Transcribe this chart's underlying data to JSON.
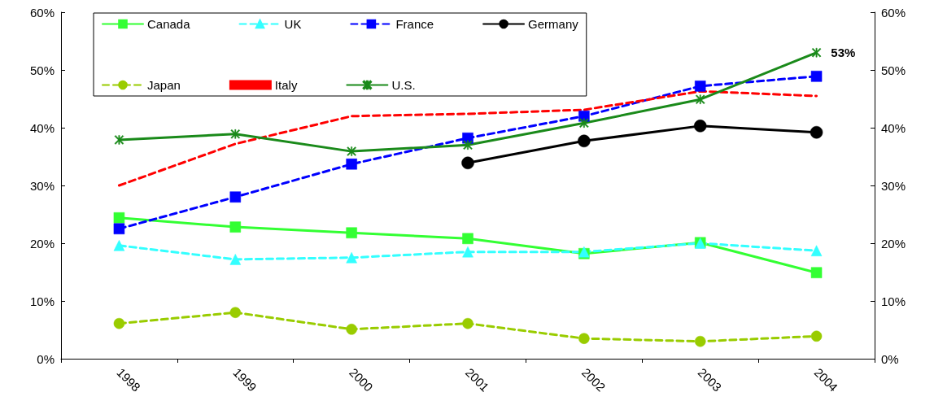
{
  "chart_data": {
    "type": "line",
    "categories": [
      "1998",
      "1999",
      "2000",
      "2001",
      "2002",
      "2003",
      "2004"
    ],
    "series": [
      {
        "name": "Canada",
        "color": "#33ff33",
        "marker": "square",
        "line_style": "solid",
        "values": [
          24.4,
          22.8,
          21.8,
          20.8,
          18.2,
          20.1,
          14.9
        ]
      },
      {
        "name": "UK",
        "color": "#33ffff",
        "marker": "triangle",
        "line_style": "dashed",
        "values": [
          19.6,
          17.2,
          17.5,
          18.5,
          18.5,
          20,
          18.7
        ]
      },
      {
        "name": "France",
        "color": "#0000ff",
        "marker": "square",
        "line_style": "dashed",
        "values": [
          22.5,
          28,
          33.7,
          38.2,
          42,
          47.2,
          48.9
        ]
      },
      {
        "name": "Germany",
        "color": "#000000",
        "marker": "circle",
        "line_style": "solid",
        "values": [
          null,
          null,
          null,
          33.9,
          37.7,
          40.3,
          39.2
        ]
      },
      {
        "name": "Japan",
        "color": "#99cc00",
        "marker": "circle",
        "line_style": "dashed",
        "values": [
          6.1,
          8,
          5.1,
          6.1,
          3.5,
          3,
          3.9
        ]
      },
      {
        "name": "Italy",
        "color": "#ff0000",
        "marker": "none",
        "line_style": "dashed",
        "values": [
          30,
          37.2,
          42,
          42.4,
          43.1,
          46.3,
          45.5
        ]
      },
      {
        "name": "U.S.",
        "color": "#1a8a1a",
        "marker": "cross",
        "line_style": "solid",
        "values": [
          37.9,
          38.9,
          35.9,
          37,
          40.8,
          44.9,
          53
        ],
        "value_labels": [
          null,
          null,
          null,
          null,
          null,
          null,
          "53%"
        ]
      }
    ],
    "ylim": [
      0,
      60
    ],
    "yticks": [
      {
        "value": 0,
        "label": "0%"
      },
      {
        "value": 10,
        "label": "10%"
      },
      {
        "value": 20,
        "label": "20%"
      },
      {
        "value": 30,
        "label": "30%"
      },
      {
        "value": 40,
        "label": "40%"
      },
      {
        "value": 50,
        "label": "50%"
      },
      {
        "value": 60,
        "label": "60%"
      }
    ],
    "y2lim": [
      0,
      60
    ],
    "y2ticks": [
      {
        "value": 0,
        "label": "0%"
      },
      {
        "value": 10,
        "label": "10%"
      },
      {
        "value": 20,
        "label": "20%"
      },
      {
        "value": 30,
        "label": "30%"
      },
      {
        "value": 40,
        "label": "40%"
      },
      {
        "value": 50,
        "label": "50%"
      },
      {
        "value": 60,
        "label": "60%"
      }
    ],
    "grid": false,
    "legend": "top"
  }
}
